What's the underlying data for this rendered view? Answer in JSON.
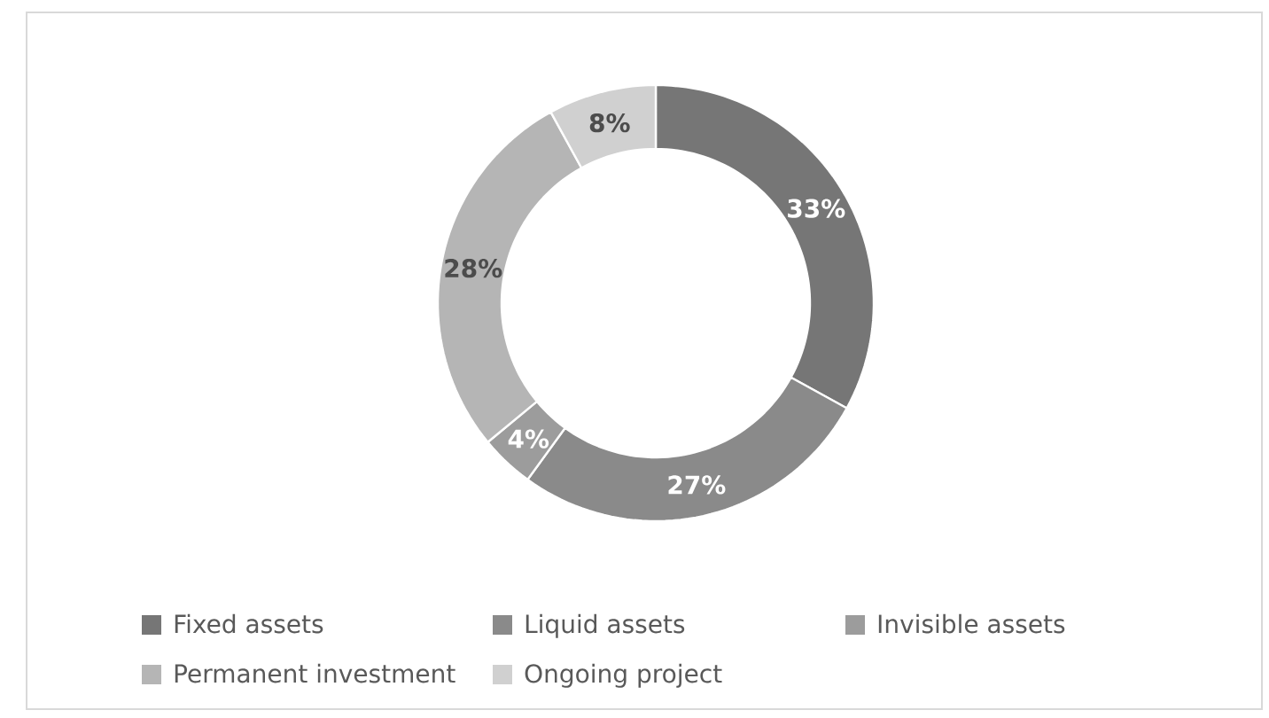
{
  "chart_data": {
    "type": "donut",
    "categories": [
      "Fixed assets",
      "Liquid assets",
      "Invisible assets",
      "Permanent investment",
      "Ongoing project"
    ],
    "values": [
      33,
      27,
      4,
      28,
      8
    ],
    "colors": [
      "#767676",
      "#8a8a8a",
      "#9c9c9c",
      "#b5b5b5",
      "#d0d0d0"
    ],
    "value_labels": [
      "33%",
      "27%",
      "4%",
      "28%",
      "8%"
    ],
    "legend": "bottom"
  }
}
